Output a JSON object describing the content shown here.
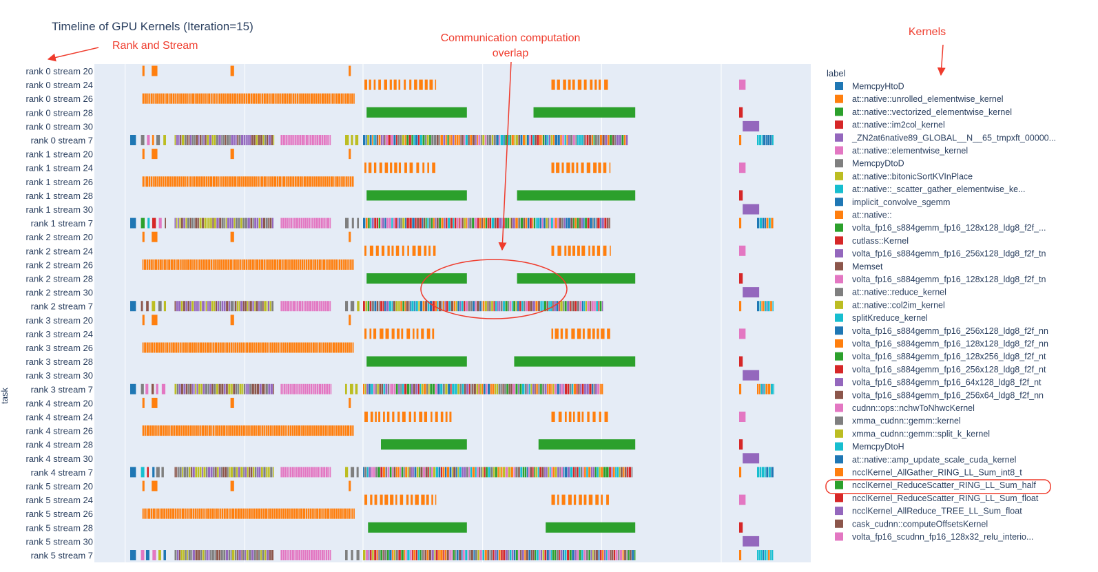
{
  "chart_data": {
    "type": "timeline",
    "title": "Timeline of GPU Kernels (Iteration=15)",
    "ylabel": "task",
    "legend_title": "label",
    "legend_placement": "right",
    "grid": true,
    "rows": [
      "rank 0 stream 20",
      "rank 0 stream 24",
      "rank 0 stream 26",
      "rank 0 stream 28",
      "rank 0 stream 30",
      "rank 0 stream 7",
      "rank 1 stream 20",
      "rank 1 stream 24",
      "rank 1 stream 26",
      "rank 1 stream 28",
      "rank 1 stream 30",
      "rank 1 stream 7",
      "rank 2 stream 20",
      "rank 2 stream 24",
      "rank 2 stream 26",
      "rank 2 stream 28",
      "rank 2 stream 30",
      "rank 2 stream 7",
      "rank 3 stream 20",
      "rank 3 stream 24",
      "rank 3 stream 26",
      "rank 3 stream 28",
      "rank 3 stream 30",
      "rank 3 stream 7",
      "rank 4 stream 20",
      "rank 4 stream 24",
      "rank 4 stream 26",
      "rank 4 stream 28",
      "rank 4 stream 30",
      "rank 4 stream 7",
      "rank 5 stream 20",
      "rank 5 stream 24",
      "rank 5 stream 26",
      "rank 5 stream 28",
      "rank 5 stream 30",
      "rank 5 stream 7"
    ],
    "legend": [
      {
        "label": "MemcpyHtoD",
        "color": "#1f77b4"
      },
      {
        "label": "at::native::unrolled_elementwise_kernel",
        "color": "#ff7f0e"
      },
      {
        "label": "at::native::vectorized_elementwise_kernel",
        "color": "#2ca02c"
      },
      {
        "label": "at::native::im2col_kernel",
        "color": "#d62728"
      },
      {
        "label": "_ZN2at6native89_GLOBAL__N__65_tmpxft_00000...",
        "color": "#9467bd"
      },
      {
        "label": "at::native::elementwise_kernel",
        "color": "#e377c2"
      },
      {
        "label": "MemcpyDtoD",
        "color": "#7f7f7f"
      },
      {
        "label": "at::native::bitonicSortKVInPlace",
        "color": "#bcbd22"
      },
      {
        "label": "at::native::_scatter_gather_elementwise_ke...",
        "color": "#17becf"
      },
      {
        "label": "implicit_convolve_sgemm",
        "color": "#1f77b4"
      },
      {
        "label": "at::native::",
        "color": "#ff7f0e"
      },
      {
        "label": "volta_fp16_s884gemm_fp16_128x128_ldg8_f2f_...",
        "color": "#2ca02c"
      },
      {
        "label": "cutlass::Kernel",
        "color": "#d62728"
      },
      {
        "label": "volta_fp16_s884gemm_fp16_256x128_ldg8_f2f_tn",
        "color": "#9467bd"
      },
      {
        "label": "Memset",
        "color": "#8c564b"
      },
      {
        "label": "volta_fp16_s884gemm_fp16_128x128_ldg8_f2f_tn",
        "color": "#e377c2"
      },
      {
        "label": "at::native::reduce_kernel",
        "color": "#7f7f7f"
      },
      {
        "label": "at::native::col2im_kernel",
        "color": "#bcbd22"
      },
      {
        "label": "splitKreduce_kernel",
        "color": "#17becf"
      },
      {
        "label": "volta_fp16_s884gemm_fp16_256x128_ldg8_f2f_nn",
        "color": "#1f77b4"
      },
      {
        "label": "volta_fp16_s884gemm_fp16_128x128_ldg8_f2f_nn",
        "color": "#ff7f0e"
      },
      {
        "label": "volta_fp16_s884gemm_fp16_128x256_ldg8_f2f_nt",
        "color": "#2ca02c"
      },
      {
        "label": "volta_fp16_s884gemm_fp16_256x128_ldg8_f2f_nt",
        "color": "#d62728"
      },
      {
        "label": "volta_fp16_s884gemm_fp16_64x128_ldg8_f2f_nt",
        "color": "#9467bd"
      },
      {
        "label": "volta_fp16_s884gemm_fp16_256x64_ldg8_f2f_nn",
        "color": "#8c564b"
      },
      {
        "label": "cudnn::ops::nchwToNhwcKernel",
        "color": "#e377c2"
      },
      {
        "label": "xmma_cudnn::gemm::kernel",
        "color": "#7f7f7f"
      },
      {
        "label": "xmma_cudnn::gemm::split_k_kernel",
        "color": "#bcbd22"
      },
      {
        "label": "MemcpyDtoH",
        "color": "#17becf"
      },
      {
        "label": "at::native::amp_update_scale_cuda_kernel",
        "color": "#1f77b4"
      },
      {
        "label": "ncclKernel_AllGather_RING_LL_Sum_int8_t",
        "color": "#ff7f0e"
      },
      {
        "label": "ncclKernel_ReduceScatter_RING_LL_Sum_half",
        "color": "#2ca02c"
      },
      {
        "label": "ncclKernel_ReduceScatter_RING_LL_Sum_float",
        "color": "#d62728"
      },
      {
        "label": "ncclKernel_AllReduce_TREE_LL_Sum_float",
        "color": "#9467bd"
      },
      {
        "label": "cask_cudnn::computeOffsetsKernel",
        "color": "#8c564b"
      },
      {
        "label": "volta_fp16_scudnn_fp16_128x32_relu_interio...",
        "color": "#e377c2"
      }
    ],
    "bars": [
      {
        "row": 3,
        "start": 0.38,
        "end": 0.52,
        "color": "#2ca02c"
      },
      {
        "row": 3,
        "start": 0.613,
        "end": 0.755,
        "color": "#2ca02c"
      },
      {
        "row": 9,
        "start": 0.38,
        "end": 0.52,
        "color": "#2ca02c"
      },
      {
        "row": 9,
        "start": 0.59,
        "end": 0.755,
        "color": "#2ca02c"
      },
      {
        "row": 15,
        "start": 0.38,
        "end": 0.52,
        "color": "#2ca02c"
      },
      {
        "row": 15,
        "start": 0.59,
        "end": 0.755,
        "color": "#2ca02c"
      },
      {
        "row": 21,
        "start": 0.38,
        "end": 0.52,
        "color": "#2ca02c"
      },
      {
        "row": 21,
        "start": 0.586,
        "end": 0.755,
        "color": "#2ca02c"
      },
      {
        "row": 27,
        "start": 0.4,
        "end": 0.52,
        "color": "#2ca02c"
      },
      {
        "row": 27,
        "start": 0.62,
        "end": 0.755,
        "color": "#2ca02c"
      },
      {
        "row": 33,
        "start": 0.382,
        "end": 0.52,
        "color": "#2ca02c"
      },
      {
        "row": 33,
        "start": 0.63,
        "end": 0.755,
        "color": "#2ca02c"
      }
    ]
  },
  "annotations": {
    "rank_stream": "Rank and Stream",
    "overlap_line1": "Communication computation",
    "overlap_line2": "overlap",
    "kernels": "Kernels"
  },
  "colors": {
    "plot_bg": "#e5ecf6",
    "annotation": "#ef3b2c"
  }
}
